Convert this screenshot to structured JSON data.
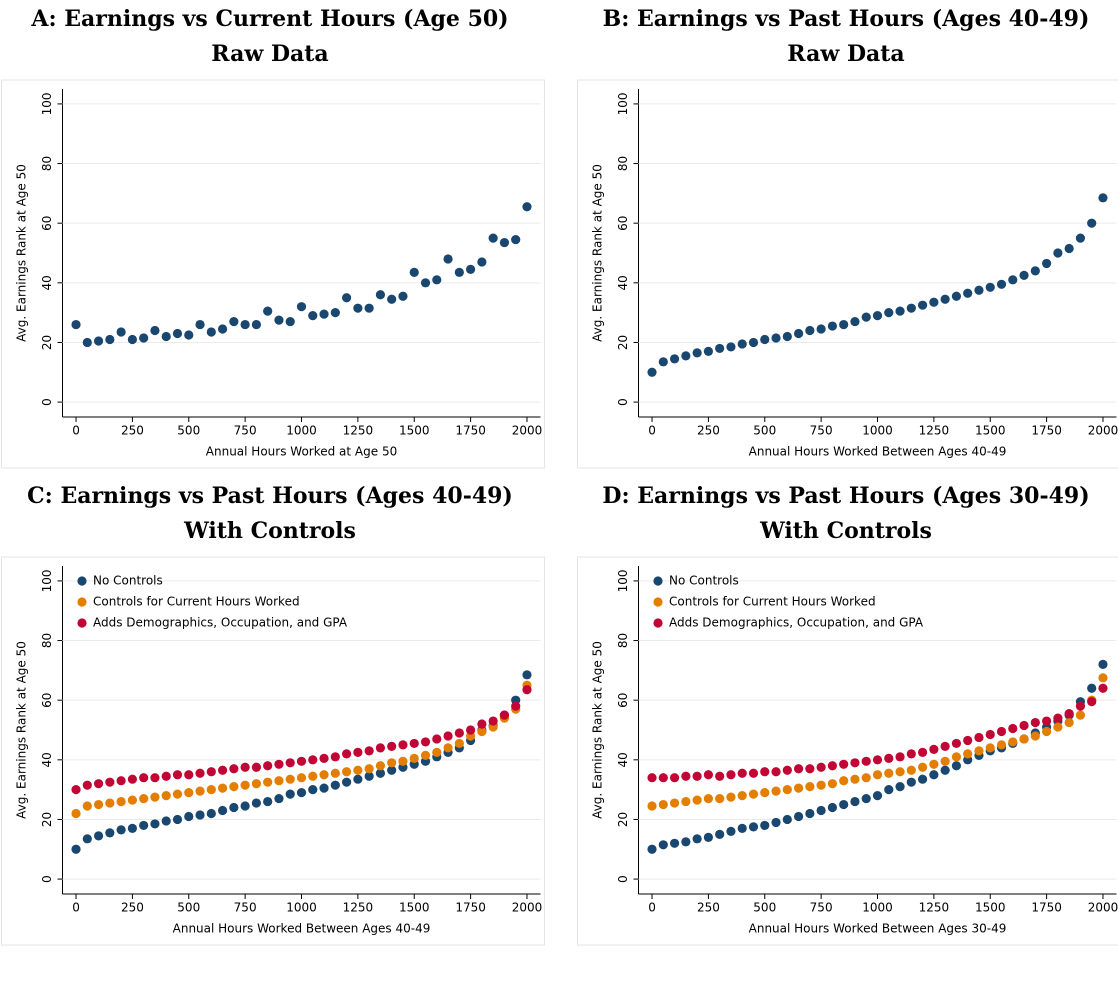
{
  "chart_data": [
    {
      "type": "scatter",
      "title": "A: Earnings vs Current Hours (Age 50)",
      "subtitle": "Raw Data",
      "x_label": "Annual Hours Worked at Age 50",
      "y_label": "Avg. Earnings Rank at Age 50",
      "x": [
        0,
        50,
        100,
        150,
        200,
        250,
        300,
        350,
        400,
        450,
        500,
        550,
        600,
        650,
        700,
        750,
        800,
        850,
        900,
        950,
        1000,
        1050,
        1100,
        1150,
        1200,
        1250,
        1300,
        1350,
        1400,
        1450,
        1500,
        1550,
        1600,
        1650,
        1700,
        1750,
        1800,
        1850,
        1900,
        1950,
        2000
      ],
      "series": [
        {
          "color": "#1a476f",
          "values": [
            26,
            20,
            20.5,
            21,
            23.5,
            21,
            21.5,
            24,
            22,
            23,
            22.5,
            26,
            23.5,
            24.5,
            27,
            26,
            26,
            30.5,
            27.5,
            27,
            32,
            29,
            29.5,
            30,
            35,
            31.5,
            31.5,
            36,
            34.5,
            35.5,
            43.5,
            40,
            41,
            48,
            43.5,
            44.5,
            47,
            55,
            53.5,
            54.5,
            65.5
          ]
        }
      ],
      "xlim": [
        -60,
        2060
      ],
      "ylim": [
        -5,
        105
      ],
      "xticks": [
        0,
        250,
        500,
        750,
        1000,
        1250,
        1500,
        1750,
        2000
      ],
      "yticks": [
        0,
        20,
        40,
        60,
        80,
        100
      ]
    },
    {
      "type": "scatter",
      "title": "B: Earnings vs Past Hours (Ages 40-49)",
      "subtitle": "Raw Data",
      "x_label": "Annual Hours Worked Between Ages 40-49",
      "y_label": "Avg. Earnings Rank at Age 50",
      "x": [
        0,
        50,
        100,
        150,
        200,
        250,
        300,
        350,
        400,
        450,
        500,
        550,
        600,
        650,
        700,
        750,
        800,
        850,
        900,
        950,
        1000,
        1050,
        1100,
        1150,
        1200,
        1250,
        1300,
        1350,
        1400,
        1450,
        1500,
        1550,
        1600,
        1650,
        1700,
        1750,
        1800,
        1850,
        1900,
        1950,
        2000
      ],
      "series": [
        {
          "color": "#1a476f",
          "values": [
            10,
            13.5,
            14.5,
            15.5,
            16.5,
            17,
            18,
            18.5,
            19.5,
            20,
            21,
            21.5,
            22,
            23,
            24,
            24.5,
            25.5,
            26,
            27,
            28.5,
            29,
            30,
            30.5,
            31.5,
            32.5,
            33.5,
            34.5,
            35.5,
            36.5,
            37.5,
            38.5,
            39.5,
            41,
            42.5,
            44,
            46.5,
            50,
            51.5,
            55,
            60,
            68.5
          ]
        }
      ],
      "xlim": [
        -60,
        2060
      ],
      "ylim": [
        -5,
        105
      ],
      "xticks": [
        0,
        250,
        500,
        750,
        1000,
        1250,
        1500,
        1750,
        2000
      ],
      "yticks": [
        0,
        20,
        40,
        60,
        80,
        100
      ]
    },
    {
      "type": "scatter",
      "title": "C: Earnings vs Past Hours (Ages 40-49)",
      "subtitle": "With Controls",
      "x_label": "Annual Hours Worked Between Ages 40-49",
      "y_label": "Avg. Earnings Rank at Age 50",
      "x": [
        0,
        50,
        100,
        150,
        200,
        250,
        300,
        350,
        400,
        450,
        500,
        550,
        600,
        650,
        700,
        750,
        800,
        850,
        900,
        950,
        1000,
        1050,
        1100,
        1150,
        1200,
        1250,
        1300,
        1350,
        1400,
        1450,
        1500,
        1550,
        1600,
        1650,
        1700,
        1750,
        1800,
        1850,
        1900,
        1950,
        2000
      ],
      "series": [
        {
          "name": "No Controls",
          "color": "#1a476f",
          "values": [
            10,
            13.5,
            14.5,
            15.5,
            16.5,
            17,
            18,
            18.5,
            19.5,
            20,
            21,
            21.5,
            22,
            23,
            24,
            24.5,
            25.5,
            26,
            27,
            28.5,
            29,
            30,
            30.5,
            31.5,
            32.5,
            33.5,
            34.5,
            35.5,
            36.5,
            37.5,
            38.5,
            39.5,
            41,
            42.5,
            44,
            46.5,
            50,
            51.5,
            55,
            60,
            68.5
          ]
        },
        {
          "name": "Controls for Current Hours Worked",
          "color": "#e37e00",
          "values": [
            22,
            24.5,
            25,
            25.5,
            26,
            26.5,
            27,
            27.5,
            28,
            28.5,
            29,
            29.5,
            30,
            30.5,
            31,
            31.5,
            32,
            32.5,
            33,
            33.5,
            34,
            34.5,
            35,
            35.5,
            36,
            36.5,
            37,
            38,
            39,
            39.5,
            40.5,
            41.5,
            42.5,
            44,
            45.5,
            48,
            49.5,
            51,
            54,
            57,
            65
          ]
        },
        {
          "name": "Adds Demographics, Occupation, and GPA",
          "color": "#c10534",
          "values": [
            30,
            31.5,
            32,
            32.5,
            33,
            33.5,
            34,
            34,
            34.5,
            35,
            35,
            35.5,
            36,
            36.5,
            37,
            37.5,
            37.5,
            38,
            38.5,
            39,
            39.5,
            40,
            40.5,
            41,
            42,
            42.5,
            43,
            44,
            44.5,
            45,
            45.5,
            46,
            47,
            48,
            49,
            50,
            52,
            53,
            55,
            58,
            63.5
          ]
        }
      ],
      "legend": "top-left",
      "xlim": [
        -60,
        2060
      ],
      "ylim": [
        -5,
        105
      ],
      "xticks": [
        0,
        250,
        500,
        750,
        1000,
        1250,
        1500,
        1750,
        2000
      ],
      "yticks": [
        0,
        20,
        40,
        60,
        80,
        100
      ]
    },
    {
      "type": "scatter",
      "title": "D: Earnings vs Past Hours (Ages 30-49)",
      "subtitle": "With Controls",
      "x_label": "Annual Hours Worked Between Ages 30-49",
      "y_label": "Avg. Earnings Rank at Age 50",
      "x": [
        0,
        50,
        100,
        150,
        200,
        250,
        300,
        350,
        400,
        450,
        500,
        550,
        600,
        650,
        700,
        750,
        800,
        850,
        900,
        950,
        1000,
        1050,
        1100,
        1150,
        1200,
        1250,
        1300,
        1350,
        1400,
        1450,
        1500,
        1550,
        1600,
        1650,
        1700,
        1750,
        1800,
        1850,
        1900,
        1950,
        2000
      ],
      "series": [
        {
          "name": "No Controls",
          "color": "#1a476f",
          "values": [
            10,
            11.5,
            12,
            12.5,
            13.5,
            14,
            15,
            16,
            17,
            17.5,
            18,
            19,
            20,
            21,
            22,
            23,
            24,
            25,
            26,
            27,
            28,
            30,
            31,
            32.5,
            33.5,
            35,
            36.5,
            38,
            40,
            41.5,
            43,
            44,
            45.5,
            47,
            49,
            51,
            53,
            55,
            59.5,
            64,
            72
          ]
        },
        {
          "name": "Controls for Current Hours Worked",
          "color": "#e37e00",
          "values": [
            24.5,
            25,
            25.5,
            26,
            26.5,
            27,
            27,
            27.5,
            28,
            28.5,
            29,
            29.5,
            30,
            30.5,
            31,
            31.5,
            32,
            33,
            33.5,
            34,
            35,
            35.5,
            36,
            36.5,
            37.5,
            38.5,
            39.5,
            41,
            42,
            43,
            44,
            45,
            46,
            47,
            48,
            49.5,
            51,
            52.5,
            55,
            60,
            67.5
          ]
        },
        {
          "name": "Adds Demographics, Occupation, and GPA",
          "color": "#c10534",
          "values": [
            34,
            34,
            34,
            34.5,
            34.5,
            35,
            34.5,
            35,
            35.5,
            35.5,
            36,
            36,
            36.5,
            37,
            37,
            37.5,
            38,
            38.5,
            39,
            39.5,
            40,
            40.5,
            41,
            42,
            42.5,
            43.5,
            44.5,
            45.5,
            46.5,
            47.5,
            48.5,
            49.5,
            50.5,
            51.5,
            52.5,
            53,
            54,
            55.5,
            58,
            59.5,
            64
          ]
        }
      ],
      "legend": "top-left",
      "xlim": [
        -60,
        2060
      ],
      "ylim": [
        -5,
        105
      ],
      "xticks": [
        0,
        250,
        500,
        750,
        1000,
        1250,
        1500,
        1750,
        2000
      ],
      "yticks": [
        0,
        20,
        40,
        60,
        80,
        100
      ]
    }
  ]
}
